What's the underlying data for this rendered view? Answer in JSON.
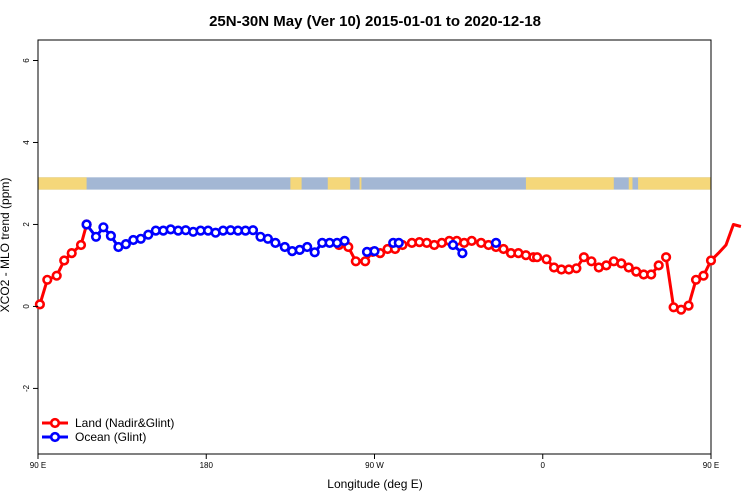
{
  "chart_data": {
    "type": "line",
    "title": "25N-30N May (Ver 10)   2015-01-01 to 2020-12-18",
    "xlabel": "Longitude (deg E)",
    "ylabel": "XCO2 - MLO trend (ppm)",
    "xlim": [
      90,
      450
    ],
    "ylim": [
      -3.6,
      6.5
    ],
    "x_ticks": [
      {
        "value": 90,
        "label": "90 E"
      },
      {
        "value": 180,
        "label": "180"
      },
      {
        "value": 270,
        "label": "90 W"
      },
      {
        "value": 360,
        "label": "0"
      },
      {
        "value": 450,
        "label": "90 E"
      },
      {
        "value": 540,
        "label": "180"
      }
    ],
    "y_ticks": [
      {
        "value": -2,
        "label": "-2"
      },
      {
        "value": 0,
        "label": "0"
      },
      {
        "value": 2,
        "label": "2"
      },
      {
        "value": 4,
        "label": "4"
      },
      {
        "value": 6,
        "label": "6"
      }
    ],
    "land_ocean_strip": {
      "y_range": [
        2.85,
        3.15
      ],
      "land_color": "#f5d77a",
      "ocean_color": "#a3b7d4",
      "land_x_ranges": [
        [
          90,
          116
        ],
        [
          225,
          231
        ],
        [
          245,
          257
        ],
        [
          262,
          263
        ],
        [
          351,
          398
        ],
        [
          406,
          408
        ],
        [
          411,
          458
        ],
        [
          450,
          474
        ]
      ]
    },
    "legend": {
      "placement": "bottom-left",
      "entries": [
        {
          "label": "Land (Nadir&Glint)",
          "color": "#ff0000"
        },
        {
          "label": "Ocean (Glint)",
          "color": "#0000ff"
        }
      ]
    },
    "series": [
      {
        "name": "Land (Nadir&Glint)",
        "color": "#ff0000",
        "segments": [
          {
            "x": [
              91,
              95,
              100,
              104,
              108,
              113,
              116
            ],
            "y": [
              0.05,
              0.65,
              0.75,
              1.12,
              1.3,
              1.5,
              2.0
            ]
          },
          {
            "x": [
              251,
              256,
              260,
              265,
              269,
              273,
              277,
              281,
              285,
              290,
              294,
              298,
              302,
              306,
              310,
              314,
              318,
              322,
              327,
              331,
              335,
              339,
              343,
              347,
              351,
              355
            ],
            "y": [
              1.5,
              1.45,
              1.1,
              1.1,
              1.33,
              1.3,
              1.4,
              1.4,
              1.5,
              1.55,
              1.57,
              1.55,
              1.5,
              1.55,
              1.6,
              1.6,
              1.55,
              1.6,
              1.55,
              1.5,
              1.45,
              1.4,
              1.3,
              1.3,
              1.25,
              1.2
            ]
          },
          {
            "x": [
              357,
              362,
              366,
              370,
              374,
              378,
              382,
              386,
              390,
              394,
              398,
              402,
              406,
              410,
              414,
              418,
              422
            ],
            "y": [
              1.2,
              1.15,
              0.95,
              0.9,
              0.9,
              0.93,
              1.2,
              1.1,
              0.95,
              1.0,
              1.1,
              1.05,
              0.95,
              0.85,
              0.78,
              0.78,
              1.0
            ]
          },
          {
            "x": [
              426,
              430,
              434,
              438,
              442,
              446,
              450,
              454,
              458,
              462,
              466
            ],
            "y": [
              1.2,
              -0.02,
              -0.08,
              0.02,
              0.65,
              0.75,
              1.12,
              1.3,
              1.5,
              2.0,
              1.95
            ]
          }
        ]
      },
      {
        "name": "Ocean (Glint)",
        "color": "#0000ff",
        "segments": [
          {
            "x": [
              116,
              121,
              125,
              129,
              133,
              137,
              141,
              145,
              149,
              153,
              157,
              161,
              165,
              169,
              173,
              177,
              181,
              185,
              189,
              193,
              197,
              201,
              205,
              209,
              213,
              217,
              222,
              226,
              230,
              234,
              238,
              242,
              246,
              250,
              254
            ],
            "y": [
              2.0,
              1.7,
              1.93,
              1.72,
              1.45,
              1.52,
              1.62,
              1.65,
              1.75,
              1.85,
              1.85,
              1.88,
              1.85,
              1.86,
              1.82,
              1.85,
              1.85,
              1.8,
              1.85,
              1.86,
              1.85,
              1.85,
              1.86,
              1.7,
              1.65,
              1.55,
              1.45,
              1.35,
              1.38,
              1.45,
              1.32,
              1.55,
              1.55,
              1.55,
              1.6
            ]
          },
          {
            "x": [
              266
            ],
            "y": [
              1.33
            ]
          },
          {
            "x": [
              270
            ],
            "y": [
              1.35
            ]
          },
          {
            "x": [
              280,
              283
            ],
            "y": [
              1.55,
              1.55
            ]
          },
          {
            "x": [
              312,
              317
            ],
            "y": [
              1.5,
              1.3
            ]
          },
          {
            "x": [
              335
            ],
            "y": [
              1.55
            ]
          }
        ]
      }
    ],
    "ocean_points_x": [
      116,
      121,
      125,
      129,
      133,
      137,
      141,
      145,
      149,
      153,
      157,
      161,
      165,
      169,
      173,
      177,
      181,
      185,
      189,
      193,
      197,
      201,
      205,
      209,
      213,
      217,
      221,
      225,
      229,
      234,
      238,
      242,
      246,
      250,
      254,
      258,
      262,
      266,
      270,
      275,
      279,
      283,
      287,
      291,
      295,
      299,
      303,
      307,
      311,
      315,
      319,
      323,
      327,
      332,
      336,
      340,
      344,
      348,
      352
    ],
    "ocean_points_y": [
      2.0,
      1.7,
      1.93,
      1.72,
      1.45,
      1.52,
      1.62,
      1.65,
      1.75,
      1.85,
      1.85,
      1.88,
      1.85,
      1.86,
      1.82,
      1.85,
      1.85,
      1.8,
      1.85,
      1.86,
      1.85,
      1.85,
      1.86,
      1.7,
      1.65,
      1.55,
      1.45,
      1.35,
      1.38,
      1.45,
      1.32,
      1.55,
      1.55,
      1.55,
      1.6,
      1.6,
      1.55,
      1.55,
      1.65,
      1.6,
      1.55,
      1.5,
      1.45,
      1.3,
      1.35,
      1.2,
      1.2,
      1.15,
      1.15,
      1.1,
      1.05,
      1.0,
      1.0,
      1.0,
      1.0,
      1.0,
      1.0,
      1.0,
      1.55
    ]
  }
}
